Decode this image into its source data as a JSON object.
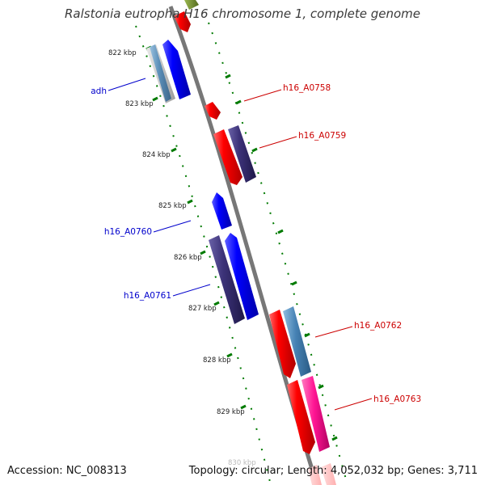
{
  "title": "Ralstonia eutropha H16 chromosome 1, complete genome",
  "accession_label": "Accession: NC_008313",
  "topology": {
    "label": "Topology:",
    "value": "circular",
    "length_label": "Length:",
    "length_value": "4,052,032 bp",
    "genes_label": "Genes:",
    "genes_value": "3,711"
  },
  "ticks": [
    "822 kbp",
    "823 kbp",
    "824 kbp",
    "825 kbp",
    "826 kbp",
    "827 kbp",
    "828 kbp",
    "829 kbp",
    "830 kbp"
  ],
  "gene_labels_left": [
    "adh",
    "h16_A0760",
    "h16_A0761"
  ],
  "gene_labels_right": [
    "h16_A0758",
    "h16_A0759",
    "h16_A0762",
    "h16_A0763"
  ],
  "colors": {
    "forward": "#0000ff",
    "reverse": "#ff0000",
    "cds_dark": "#3c3278",
    "cds_steel": "#4682b4",
    "cds_pink": "#ff1493",
    "label_left": "#0000cc",
    "label_right": "#cc0000",
    "tick": "#007a00",
    "backbone": "#777777",
    "olive": "#6b8e23"
  }
}
